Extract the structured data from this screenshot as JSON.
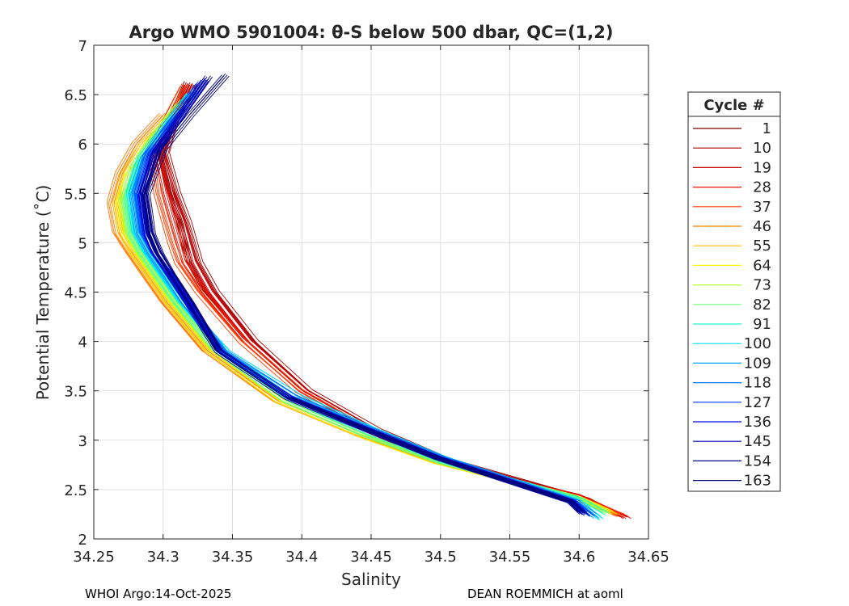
{
  "chart_data": {
    "type": "line",
    "title": "Argo WMO 5901004: θ-S below 500 dbar,  QC=(1,2)",
    "xlabel": "Salinity",
    "ylabel": "Potential Temperature (˚C)",
    "xlim": [
      34.25,
      34.65
    ],
    "ylim": [
      2,
      7
    ],
    "grid": true,
    "xticks": [
      34.25,
      34.3,
      34.35,
      34.4,
      34.45,
      34.5,
      34.55,
      34.6,
      34.65
    ],
    "xtick_labels": [
      "34.25",
      "34.3",
      "34.35",
      "34.4",
      "34.45",
      "34.5",
      "34.55",
      "34.6",
      "34.65"
    ],
    "yticks": [
      2,
      2.5,
      3,
      3.5,
      4,
      4.5,
      5,
      5.5,
      6,
      6.5,
      7
    ],
    "ytick_labels": [
      "2",
      "2.5",
      "3",
      "3.5",
      "4",
      "4.5",
      "5",
      "5.5",
      "6",
      "6.5",
      "7"
    ],
    "legend": {
      "title": "Cycle #",
      "position": "outside-right",
      "entries": [
        {
          "label": "1",
          "color": "#7a0000"
        },
        {
          "label": "10",
          "color": "#aa0000"
        },
        {
          "label": "19",
          "color": "#c80000"
        },
        {
          "label": "28",
          "color": "#e81000"
        },
        {
          "label": "37",
          "color": "#ff3b00"
        },
        {
          "label": "46",
          "color": "#ff7a00"
        },
        {
          "label": "55",
          "color": "#ffbf00"
        },
        {
          "label": "64",
          "color": "#fff200"
        },
        {
          "label": "73",
          "color": "#b8ff2e"
        },
        {
          "label": "82",
          "color": "#6cff7a"
        },
        {
          "label": "91",
          "color": "#22ffc8"
        },
        {
          "label": "100",
          "color": "#00e0ff"
        },
        {
          "label": "109",
          "color": "#00a4ff"
        },
        {
          "label": "118",
          "color": "#0070ff"
        },
        {
          "label": "127",
          "color": "#0038ff"
        },
        {
          "label": "136",
          "color": "#0008e0"
        },
        {
          "label": "145",
          "color": "#0000b4"
        },
        {
          "label": "154",
          "color": "#000090"
        },
        {
          "label": "163",
          "color": "#00007a"
        }
      ]
    },
    "series": [
      {
        "name": "1",
        "color": "#7a0000",
        "x": [
          34.318,
          34.305,
          34.298,
          34.305,
          34.312,
          34.315,
          34.318,
          34.33,
          34.36,
          34.4,
          34.45,
          34.5,
          34.55,
          34.6,
          34.615
        ],
        "y": [
          6.6,
          6.2,
          5.9,
          5.5,
          5.2,
          5.0,
          4.8,
          4.5,
          4.0,
          3.5,
          3.1,
          2.8,
          2.6,
          2.42,
          2.3
        ]
      },
      {
        "name": "10",
        "color": "#aa0000",
        "x": [
          34.322,
          34.308,
          34.302,
          34.31,
          34.318,
          34.322,
          34.326,
          34.338,
          34.366,
          34.405,
          34.455,
          34.505,
          34.555,
          34.605,
          34.625
        ],
        "y": [
          6.6,
          6.2,
          5.9,
          5.5,
          5.2,
          5.0,
          4.8,
          4.5,
          4.0,
          3.5,
          3.1,
          2.8,
          2.6,
          2.4,
          2.25
        ]
      },
      {
        "name": "19",
        "color": "#c80000",
        "x": [
          34.32,
          34.306,
          34.299,
          34.306,
          34.314,
          34.318,
          34.322,
          34.334,
          34.362,
          34.402,
          34.452,
          34.502,
          34.552,
          34.602,
          34.632
        ],
        "y": [
          6.6,
          6.2,
          5.9,
          5.5,
          5.2,
          5.0,
          4.8,
          4.5,
          4.0,
          3.5,
          3.1,
          2.8,
          2.6,
          2.42,
          2.22
        ]
      },
      {
        "name": "28",
        "color": "#e81000",
        "x": [
          34.318,
          34.304,
          34.296,
          34.302,
          34.308,
          34.312,
          34.316,
          34.33,
          34.36,
          34.4,
          34.45,
          34.5,
          34.55,
          34.6,
          34.635
        ],
        "y": [
          6.6,
          6.2,
          5.9,
          5.5,
          5.2,
          5.0,
          4.8,
          4.5,
          4.0,
          3.5,
          3.1,
          2.8,
          2.6,
          2.44,
          2.22
        ]
      },
      {
        "name": "37",
        "color": "#ff3b00",
        "x": [
          34.315,
          34.3,
          34.292,
          34.296,
          34.302,
          34.306,
          34.311,
          34.326,
          34.357,
          34.398,
          34.448,
          34.498,
          34.548,
          34.598,
          34.63
        ],
        "y": [
          6.6,
          6.2,
          5.9,
          5.5,
          5.2,
          5.0,
          4.8,
          4.5,
          4.0,
          3.5,
          3.1,
          2.8,
          2.6,
          2.42,
          2.24
        ]
      },
      {
        "name": "46",
        "color": "#ff7a00",
        "x": [
          34.3,
          34.28,
          34.268,
          34.262,
          34.266,
          34.275,
          34.285,
          34.3,
          34.33,
          34.38,
          34.44,
          34.495,
          34.548,
          34.598,
          34.628
        ],
        "y": [
          6.3,
          6.0,
          5.7,
          5.4,
          5.1,
          4.9,
          4.7,
          4.4,
          3.9,
          3.4,
          3.05,
          2.78,
          2.6,
          2.42,
          2.24
        ]
      },
      {
        "name": "55",
        "color": "#ffbf00",
        "x": [
          34.305,
          34.285,
          34.272,
          34.266,
          34.27,
          34.278,
          34.288,
          34.303,
          34.333,
          34.382,
          34.442,
          34.496,
          34.548,
          34.598,
          34.625
        ],
        "y": [
          6.3,
          6.0,
          5.7,
          5.4,
          5.1,
          4.9,
          4.7,
          4.4,
          3.9,
          3.4,
          3.05,
          2.78,
          2.6,
          2.42,
          2.26
        ]
      },
      {
        "name": "64",
        "color": "#fff200",
        "x": [
          34.308,
          34.288,
          34.275,
          34.268,
          34.272,
          34.28,
          34.29,
          34.305,
          34.335,
          34.384,
          34.443,
          34.497,
          34.548,
          34.598,
          34.622
        ],
        "y": [
          6.35,
          6.0,
          5.7,
          5.4,
          5.1,
          4.9,
          4.7,
          4.4,
          3.9,
          3.4,
          3.05,
          2.78,
          2.6,
          2.42,
          2.27
        ]
      },
      {
        "name": "73",
        "color": "#b8ff2e",
        "x": [
          34.312,
          34.292,
          34.278,
          34.27,
          34.274,
          34.282,
          34.292,
          34.307,
          34.337,
          34.386,
          34.444,
          34.498,
          34.549,
          34.599,
          34.62
        ],
        "y": [
          6.4,
          6.05,
          5.75,
          5.45,
          5.1,
          4.9,
          4.7,
          4.4,
          3.9,
          3.4,
          3.05,
          2.78,
          2.6,
          2.42,
          2.28
        ]
      },
      {
        "name": "82",
        "color": "#6cff7a",
        "x": [
          34.315,
          34.295,
          34.28,
          34.272,
          34.276,
          34.284,
          34.294,
          34.309,
          34.339,
          34.388,
          34.446,
          34.499,
          34.549,
          34.599,
          34.62
        ],
        "y": [
          6.45,
          6.1,
          5.8,
          5.45,
          5.1,
          4.9,
          4.7,
          4.4,
          3.9,
          3.4,
          3.05,
          2.78,
          2.6,
          2.42,
          2.27
        ]
      },
      {
        "name": "91",
        "color": "#22ffc8",
        "x": [
          34.318,
          34.298,
          34.282,
          34.274,
          34.278,
          34.286,
          34.296,
          34.311,
          34.342,
          34.392,
          34.449,
          34.5,
          34.55,
          34.6,
          34.618
        ],
        "y": [
          6.5,
          6.1,
          5.8,
          5.45,
          5.1,
          4.9,
          4.7,
          4.4,
          3.9,
          3.42,
          3.08,
          2.8,
          2.6,
          2.4,
          2.25
        ]
      },
      {
        "name": "100",
        "color": "#00e0ff",
        "x": [
          34.32,
          34.3,
          34.284,
          34.276,
          34.28,
          34.288,
          34.298,
          34.313,
          34.346,
          34.398,
          34.454,
          34.503,
          34.551,
          34.6,
          34.615
        ],
        "y": [
          6.5,
          6.15,
          5.85,
          5.5,
          5.1,
          4.9,
          4.7,
          4.4,
          3.9,
          3.45,
          3.1,
          2.82,
          2.6,
          2.38,
          2.2
        ]
      },
      {
        "name": "109",
        "color": "#00a4ff",
        "x": [
          34.323,
          34.302,
          34.286,
          34.278,
          34.282,
          34.29,
          34.3,
          34.315,
          34.344,
          34.396,
          34.452,
          34.502,
          34.55,
          34.598,
          34.612
        ],
        "y": [
          6.55,
          6.2,
          5.85,
          5.5,
          5.1,
          4.9,
          4.7,
          4.4,
          3.9,
          3.44,
          3.1,
          2.82,
          2.6,
          2.38,
          2.22
        ]
      },
      {
        "name": "118",
        "color": "#0070ff",
        "x": [
          34.325,
          34.305,
          34.288,
          34.28,
          34.284,
          34.292,
          34.302,
          34.316,
          34.343,
          34.394,
          34.451,
          34.501,
          34.549,
          34.597,
          34.61
        ],
        "y": [
          6.6,
          6.2,
          5.9,
          5.5,
          5.1,
          4.9,
          4.7,
          4.4,
          3.9,
          3.44,
          3.1,
          2.82,
          2.6,
          2.38,
          2.24
        ]
      },
      {
        "name": "127",
        "color": "#0038ff",
        "x": [
          34.328,
          34.308,
          34.29,
          34.282,
          34.286,
          34.293,
          34.303,
          34.317,
          34.342,
          34.392,
          34.45,
          34.5,
          34.548,
          34.596,
          34.608
        ],
        "y": [
          6.62,
          6.25,
          5.9,
          5.5,
          5.1,
          4.9,
          4.7,
          4.4,
          3.9,
          3.43,
          3.1,
          2.82,
          2.6,
          2.38,
          2.24
        ]
      },
      {
        "name": "136",
        "color": "#0008e0",
        "x": [
          34.33,
          34.31,
          34.292,
          34.284,
          34.288,
          34.294,
          34.304,
          34.318,
          34.341,
          34.391,
          34.449,
          34.499,
          34.547,
          34.595,
          34.605
        ],
        "y": [
          6.65,
          6.25,
          5.9,
          5.5,
          5.1,
          4.9,
          4.7,
          4.4,
          3.9,
          3.43,
          3.1,
          2.82,
          2.6,
          2.38,
          2.25
        ]
      },
      {
        "name": "145",
        "color": "#0000b4",
        "x": [
          34.332,
          34.312,
          34.294,
          34.285,
          34.289,
          34.295,
          34.304,
          34.318,
          34.34,
          34.39,
          34.448,
          34.498,
          34.546,
          34.594,
          34.603
        ],
        "y": [
          6.65,
          6.25,
          5.9,
          5.5,
          5.1,
          4.9,
          4.7,
          4.4,
          3.9,
          3.43,
          3.1,
          2.82,
          2.6,
          2.38,
          2.26
        ]
      },
      {
        "name": "154",
        "color": "#000090",
        "x": [
          34.333,
          34.313,
          34.295,
          34.286,
          34.29,
          34.296,
          34.305,
          34.319,
          34.34,
          34.39,
          34.448,
          34.498,
          34.546,
          34.594,
          34.602
        ],
        "y": [
          6.68,
          6.28,
          5.92,
          5.5,
          5.1,
          4.9,
          4.7,
          4.4,
          3.9,
          3.43,
          3.1,
          2.82,
          2.6,
          2.38,
          2.26
        ]
      },
      {
        "name": "163",
        "color": "#00007a",
        "x": [
          34.345,
          34.32,
          34.3,
          34.288,
          34.292,
          34.298,
          34.306,
          34.32,
          34.341,
          34.391,
          34.448,
          34.498,
          34.546,
          34.594,
          34.602
        ],
        "y": [
          6.7,
          6.3,
          5.95,
          5.5,
          5.1,
          4.9,
          4.7,
          4.4,
          3.9,
          3.43,
          3.1,
          2.82,
          2.6,
          2.38,
          2.27
        ]
      }
    ]
  },
  "footer": {
    "left": "WHOI Argo:14-Oct-2025",
    "right": "DEAN ROEMMICH at aoml"
  }
}
